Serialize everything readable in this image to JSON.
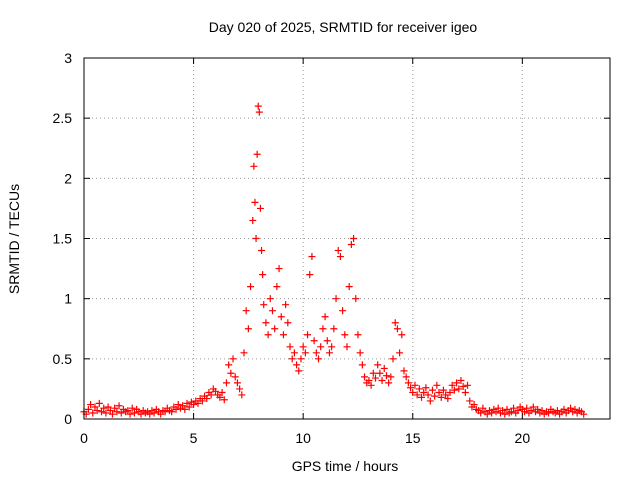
{
  "chart_data": {
    "type": "scatter",
    "title": "Day 020 of 2025, SRMTID for receiver igeo",
    "xlabel": "GPS time / hours",
    "ylabel": "SRMTID / TECUs",
    "xlim": [
      0,
      24
    ],
    "ylim": [
      0,
      3
    ],
    "xticks": [
      0,
      5,
      10,
      15,
      20
    ],
    "yticks": [
      0,
      0.5,
      1,
      1.5,
      2,
      2.5,
      3
    ],
    "xtick_labels": [
      "0",
      "5",
      "10",
      "15",
      "20"
    ],
    "ytick_labels": [
      "0",
      "0.5",
      "1",
      "1.5",
      "2",
      "2.5",
      "3"
    ],
    "grid": true,
    "marker": "+",
    "series": [
      {
        "name": "SRMTID",
        "color": "#ff0000",
        "points": [
          [
            0.0,
            0.06
          ],
          [
            0.1,
            0.04
          ],
          [
            0.2,
            0.08
          ],
          [
            0.3,
            0.12
          ],
          [
            0.4,
            0.05
          ],
          [
            0.5,
            0.1
          ],
          [
            0.6,
            0.07
          ],
          [
            0.7,
            0.13
          ],
          [
            0.8,
            0.06
          ],
          [
            0.9,
            0.09
          ],
          [
            1.0,
            0.05
          ],
          [
            1.1,
            0.1
          ],
          [
            1.2,
            0.07
          ],
          [
            1.3,
            0.04
          ],
          [
            1.4,
            0.09
          ],
          [
            1.5,
            0.06
          ],
          [
            1.6,
            0.11
          ],
          [
            1.7,
            0.05
          ],
          [
            1.8,
            0.08
          ],
          [
            1.9,
            0.06
          ],
          [
            2.0,
            0.07
          ],
          [
            2.1,
            0.04
          ],
          [
            2.2,
            0.09
          ],
          [
            2.3,
            0.05
          ],
          [
            2.4,
            0.08
          ],
          [
            2.5,
            0.06
          ],
          [
            2.6,
            0.04
          ],
          [
            2.7,
            0.07
          ],
          [
            2.8,
            0.05
          ],
          [
            2.9,
            0.06
          ],
          [
            3.0,
            0.04
          ],
          [
            3.1,
            0.07
          ],
          [
            3.2,
            0.05
          ],
          [
            3.3,
            0.08
          ],
          [
            3.4,
            0.06
          ],
          [
            3.5,
            0.04
          ],
          [
            3.6,
            0.07
          ],
          [
            3.7,
            0.06
          ],
          [
            3.8,
            0.09
          ],
          [
            3.9,
            0.07
          ],
          [
            4.0,
            0.06
          ],
          [
            4.1,
            0.1
          ],
          [
            4.2,
            0.08
          ],
          [
            4.3,
            0.12
          ],
          [
            4.4,
            0.09
          ],
          [
            4.5,
            0.11
          ],
          [
            4.6,
            0.08
          ],
          [
            4.7,
            0.13
          ],
          [
            4.8,
            0.1
          ],
          [
            4.9,
            0.14
          ],
          [
            5.0,
            0.12
          ],
          [
            5.1,
            0.15
          ],
          [
            5.2,
            0.13
          ],
          [
            5.3,
            0.17
          ],
          [
            5.4,
            0.15
          ],
          [
            5.5,
            0.19
          ],
          [
            5.6,
            0.17
          ],
          [
            5.7,
            0.22
          ],
          [
            5.8,
            0.2
          ],
          [
            5.9,
            0.25
          ],
          [
            6.0,
            0.23
          ],
          [
            6.1,
            0.2
          ],
          [
            6.2,
            0.18
          ],
          [
            6.3,
            0.22
          ],
          [
            6.4,
            0.16
          ],
          [
            6.5,
            0.3
          ],
          [
            6.6,
            0.45
          ],
          [
            6.7,
            0.38
          ],
          [
            6.8,
            0.5
          ],
          [
            6.9,
            0.35
          ],
          [
            7.0,
            0.3
          ],
          [
            7.1,
            0.25
          ],
          [
            7.2,
            0.2
          ],
          [
            7.3,
            0.55
          ],
          [
            7.4,
            0.9
          ],
          [
            7.5,
            0.75
          ],
          [
            7.6,
            1.1
          ],
          [
            7.7,
            1.65
          ],
          [
            7.75,
            2.1
          ],
          [
            7.8,
            1.8
          ],
          [
            7.85,
            1.5
          ],
          [
            7.9,
            2.2
          ],
          [
            7.95,
            2.6
          ],
          [
            8.0,
            2.55
          ],
          [
            8.05,
            1.75
          ],
          [
            8.1,
            1.4
          ],
          [
            8.15,
            1.2
          ],
          [
            8.2,
            0.95
          ],
          [
            8.3,
            0.8
          ],
          [
            8.4,
            0.7
          ],
          [
            8.5,
            1.0
          ],
          [
            8.6,
            0.9
          ],
          [
            8.7,
            0.75
          ],
          [
            8.8,
            1.1
          ],
          [
            8.9,
            1.25
          ],
          [
            9.0,
            0.85
          ],
          [
            9.1,
            0.7
          ],
          [
            9.2,
            0.95
          ],
          [
            9.3,
            0.8
          ],
          [
            9.4,
            0.6
          ],
          [
            9.5,
            0.5
          ],
          [
            9.6,
            0.55
          ],
          [
            9.7,
            0.45
          ],
          [
            9.8,
            0.4
          ],
          [
            9.9,
            0.5
          ],
          [
            10.0,
            0.6
          ],
          [
            10.1,
            0.55
          ],
          [
            10.2,
            0.7
          ],
          [
            10.3,
            1.2
          ],
          [
            10.4,
            1.35
          ],
          [
            10.5,
            0.65
          ],
          [
            10.6,
            0.55
          ],
          [
            10.7,
            0.5
          ],
          [
            10.8,
            0.6
          ],
          [
            10.9,
            0.75
          ],
          [
            11.0,
            0.85
          ],
          [
            11.1,
            0.65
          ],
          [
            11.2,
            0.55
          ],
          [
            11.3,
            0.6
          ],
          [
            11.4,
            0.75
          ],
          [
            11.5,
            1.0
          ],
          [
            11.6,
            1.4
          ],
          [
            11.7,
            1.35
          ],
          [
            11.8,
            0.9
          ],
          [
            11.9,
            0.7
          ],
          [
            12.0,
            0.6
          ],
          [
            12.1,
            1.1
          ],
          [
            12.2,
            1.45
          ],
          [
            12.3,
            1.5
          ],
          [
            12.4,
            1.0
          ],
          [
            12.5,
            0.7
          ],
          [
            12.6,
            0.55
          ],
          [
            12.7,
            0.45
          ],
          [
            12.8,
            0.35
          ],
          [
            12.9,
            0.3
          ],
          [
            13.0,
            0.32
          ],
          [
            13.1,
            0.28
          ],
          [
            13.2,
            0.38
          ],
          [
            13.3,
            0.34
          ],
          [
            13.4,
            0.45
          ],
          [
            13.5,
            0.38
          ],
          [
            13.6,
            0.32
          ],
          [
            13.7,
            0.42
          ],
          [
            13.8,
            0.36
          ],
          [
            13.9,
            0.3
          ],
          [
            14.0,
            0.35
          ],
          [
            14.1,
            0.5
          ],
          [
            14.2,
            0.8
          ],
          [
            14.3,
            0.75
          ],
          [
            14.4,
            0.55
          ],
          [
            14.5,
            0.7
          ],
          [
            14.6,
            0.4
          ],
          [
            14.7,
            0.35
          ],
          [
            14.8,
            0.3
          ],
          [
            14.9,
            0.26
          ],
          [
            15.0,
            0.22
          ],
          [
            15.1,
            0.28
          ],
          [
            15.2,
            0.2
          ],
          [
            15.3,
            0.25
          ],
          [
            15.4,
            0.18
          ],
          [
            15.5,
            0.22
          ],
          [
            15.6,
            0.26
          ],
          [
            15.7,
            0.2
          ],
          [
            15.8,
            0.15
          ],
          [
            15.9,
            0.24
          ],
          [
            16.0,
            0.19
          ],
          [
            16.1,
            0.28
          ],
          [
            16.2,
            0.22
          ],
          [
            16.3,
            0.18
          ],
          [
            16.4,
            0.24
          ],
          [
            16.5,
            0.2
          ],
          [
            16.6,
            0.17
          ],
          [
            16.7,
            0.22
          ],
          [
            16.8,
            0.28
          ],
          [
            16.9,
            0.24
          ],
          [
            17.0,
            0.3
          ],
          [
            17.1,
            0.25
          ],
          [
            17.2,
            0.32
          ],
          [
            17.3,
            0.27
          ],
          [
            17.4,
            0.22
          ],
          [
            17.5,
            0.28
          ],
          [
            17.6,
            0.15
          ],
          [
            17.7,
            0.1
          ],
          [
            17.8,
            0.12
          ],
          [
            17.9,
            0.08
          ],
          [
            18.0,
            0.07
          ],
          [
            18.1,
            0.05
          ],
          [
            18.2,
            0.09
          ],
          [
            18.3,
            0.06
          ],
          [
            18.4,
            0.04
          ],
          [
            18.5,
            0.07
          ],
          [
            18.6,
            0.05
          ],
          [
            18.7,
            0.08
          ],
          [
            18.8,
            0.06
          ],
          [
            18.9,
            0.09
          ],
          [
            19.0,
            0.05
          ],
          [
            19.1,
            0.07
          ],
          [
            19.2,
            0.04
          ],
          [
            19.3,
            0.08
          ],
          [
            19.4,
            0.05
          ],
          [
            19.5,
            0.06
          ],
          [
            19.6,
            0.09
          ],
          [
            19.7,
            0.05
          ],
          [
            19.8,
            0.07
          ],
          [
            19.9,
            0.1
          ],
          [
            20.0,
            0.08
          ],
          [
            20.1,
            0.06
          ],
          [
            20.2,
            0.09
          ],
          [
            20.3,
            0.05
          ],
          [
            20.4,
            0.07
          ],
          [
            20.5,
            0.1
          ],
          [
            20.6,
            0.06
          ],
          [
            20.7,
            0.08
          ],
          [
            20.8,
            0.05
          ],
          [
            20.9,
            0.07
          ],
          [
            21.0,
            0.04
          ],
          [
            21.1,
            0.06
          ],
          [
            21.2,
            0.05
          ],
          [
            21.3,
            0.08
          ],
          [
            21.4,
            0.06
          ],
          [
            21.5,
            0.05
          ],
          [
            21.6,
            0.07
          ],
          [
            21.7,
            0.04
          ],
          [
            21.8,
            0.06
          ],
          [
            21.9,
            0.08
          ],
          [
            22.0,
            0.05
          ],
          [
            22.1,
            0.07
          ],
          [
            22.2,
            0.09
          ],
          [
            22.3,
            0.06
          ],
          [
            22.4,
            0.08
          ],
          [
            22.5,
            0.05
          ],
          [
            22.6,
            0.07
          ],
          [
            22.7,
            0.06
          ],
          [
            22.8,
            0.04
          ]
        ]
      }
    ]
  }
}
